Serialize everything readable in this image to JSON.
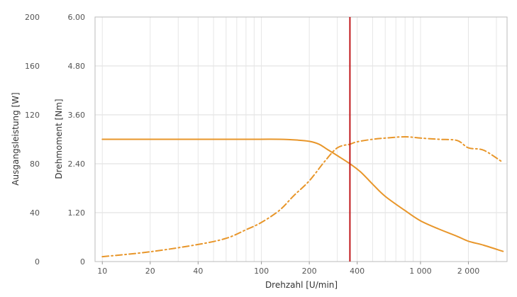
{
  "chart_data": {
    "type": "line",
    "title": "",
    "xlabel": "Drehzahl [U/min]",
    "x_scale": "log",
    "xlim": [
      9,
      3500
    ],
    "x_ticks": [
      10,
      20,
      40,
      100,
      200,
      400,
      1000,
      2000
    ],
    "x_tick_labels": [
      "10",
      "20",
      "40",
      "100",
      "200",
      "400",
      "1 000",
      "2 000"
    ],
    "y_axes": [
      {
        "id": "left-outer",
        "label": "Ausgangsleistung [W]",
        "ylim": [
          0,
          200
        ],
        "ticks": [
          0,
          40,
          80,
          120,
          160,
          200
        ],
        "tick_labels": [
          "0",
          "40",
          "80",
          "120",
          "160",
          "200"
        ]
      },
      {
        "id": "left-inner",
        "label": "Drehmoment [Nm]",
        "ylim": [
          0,
          6.0
        ],
        "ticks": [
          0,
          1.2,
          2.4,
          3.6,
          4.8,
          6.0
        ],
        "tick_labels": [
          "0",
          "1.20",
          "2.40",
          "3.60",
          "4.80",
          "6.00"
        ]
      }
    ],
    "grid": true,
    "marker": {
      "x": 360,
      "color": "#c0191c"
    },
    "series": [
      {
        "axis": "left-inner",
        "style": "solid",
        "color": "#e8962a",
        "x": [
          10,
          20,
          40,
          80,
          130,
          170,
          200,
          230,
          260,
          300,
          360,
          420,
          500,
          600,
          800,
          1000,
          1300,
          1700,
          2000,
          2500,
          3300
        ],
        "y": [
          3.0,
          3.0,
          3.0,
          3.0,
          3.0,
          2.98,
          2.95,
          2.88,
          2.75,
          2.6,
          2.4,
          2.2,
          1.9,
          1.6,
          1.25,
          1.0,
          0.8,
          0.62,
          0.5,
          0.4,
          0.25
        ]
      },
      {
        "axis": "left-outer",
        "style": "dash-dot",
        "color": "#e8962a",
        "x": [
          10,
          20,
          40,
          60,
          80,
          100,
          130,
          160,
          200,
          250,
          300,
          360,
          400,
          500,
          600,
          800,
          1000,
          1300,
          1700,
          2000,
          2500,
          3300
        ],
        "y": [
          4,
          8,
          14,
          19,
          26,
          32,
          42,
          54,
          66,
          82,
          93,
          96,
          98,
          100,
          101,
          102,
          101,
          100,
          99,
          93,
          91,
          81
        ]
      }
    ]
  }
}
